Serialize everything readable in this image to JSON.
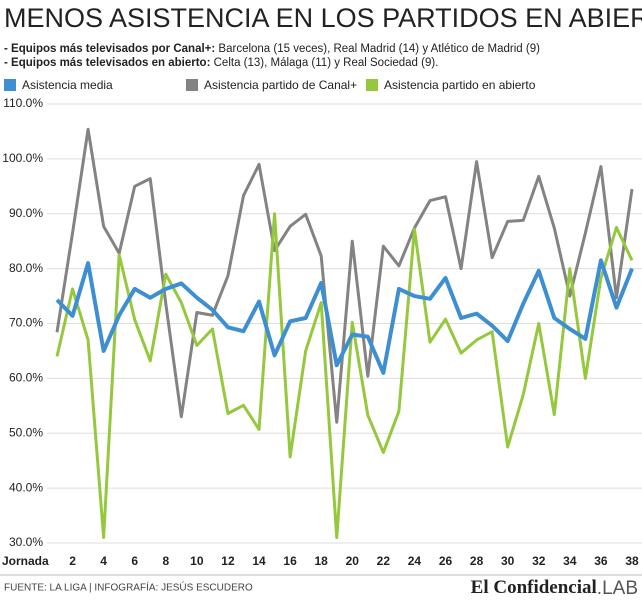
{
  "chart_data": {
    "type": "line",
    "title": "MENOS ASISTENCIA EN LOS PARTIDOS EN ABIERTO",
    "notes": [
      {
        "label": "- Equipos más televisados por Canal+:",
        "text": "Barcelona (15 veces), Real Madrid (14) y Atlético de Madrid (9)"
      },
      {
        "label": "- Equipos más televisados en abierto:",
        "text": "Celta (13), Málaga (11) y Real Sociedad (9)."
      }
    ],
    "x_label": "Jornada",
    "x": [
      1,
      2,
      3,
      4,
      5,
      6,
      7,
      8,
      9,
      10,
      11,
      12,
      13,
      14,
      15,
      16,
      17,
      18,
      19,
      20,
      21,
      22,
      23,
      24,
      25,
      26,
      27,
      28,
      29,
      30,
      31,
      32,
      33,
      34,
      35,
      36,
      37,
      38
    ],
    "xlim": [
      1,
      38
    ],
    "xticks": [
      2,
      4,
      6,
      8,
      10,
      12,
      14,
      16,
      18,
      20,
      22,
      24,
      26,
      28,
      30,
      32,
      34,
      36,
      38
    ],
    "ylim": [
      30,
      110
    ],
    "yticks": [
      {
        "value": 30,
        "label": "30.0%"
      },
      {
        "value": 40,
        "label": "40.0%"
      },
      {
        "value": 50,
        "label": "50.0%"
      },
      {
        "value": 60,
        "label": "60.0%"
      },
      {
        "value": 70,
        "label": "70.0%"
      },
      {
        "value": 80,
        "label": "80.0%"
      },
      {
        "value": 90,
        "label": "90.0%"
      },
      {
        "value": 100,
        "label": "100.0%"
      },
      {
        "value": 110,
        "label": "110.0%"
      }
    ],
    "grid": true,
    "series": [
      {
        "name": "Asistencia media",
        "color": "#3d8fd1",
        "width": 4,
        "values": [
          74.3,
          71.4,
          81,
          65,
          71.5,
          76.3,
          74.7,
          76.3,
          77.3,
          74.7,
          72.5,
          69.3,
          68.6,
          74,
          64.2,
          70.4,
          71,
          77.4,
          62.4,
          68,
          67.6,
          61,
          76.3,
          75,
          74.5,
          78.3,
          71,
          71.8,
          69.6,
          66.8,
          73.6,
          79.6,
          71,
          69,
          67.2,
          81.5,
          72.9,
          80
        ]
      },
      {
        "name": "Asistencia partido de Canal+",
        "color": "#838383",
        "width": 3,
        "values": [
          68.4,
          86.5,
          105.4,
          87.7,
          82.8,
          95,
          96.4,
          73.6,
          53,
          72,
          71.5,
          78.7,
          93.3,
          99,
          83.3,
          87.7,
          89.9,
          82.3,
          52,
          85,
          60.4,
          84.1,
          80.5,
          87.4,
          92.4,
          93.1,
          80,
          99.5,
          82,
          88.6,
          88.8,
          96.8,
          87.4,
          75,
          86.5,
          98.6,
          74.7,
          94.5
        ]
      },
      {
        "name": "Asistencia partido en abierto",
        "color": "#95c83d",
        "width": 3,
        "values": [
          64,
          76.3,
          67,
          31,
          82.5,
          70.7,
          63.2,
          79,
          73.8,
          66,
          69,
          53.6,
          55.1,
          50.7,
          90,
          45.7,
          65,
          73.8,
          31,
          70.2,
          53.3,
          46.5,
          54,
          87.2,
          66.6,
          70.8,
          64.6,
          67,
          68.5,
          47.5,
          57,
          70,
          53.4,
          80,
          60,
          78.3,
          87.5,
          81.5
        ]
      }
    ],
    "footer": {
      "source": "FUENTE: LA LIGA | INFOGRAFÍA: JESÚS ESCUDERO",
      "brand": "El Confidencial",
      "brand_suffix": ".LAB"
    }
  }
}
